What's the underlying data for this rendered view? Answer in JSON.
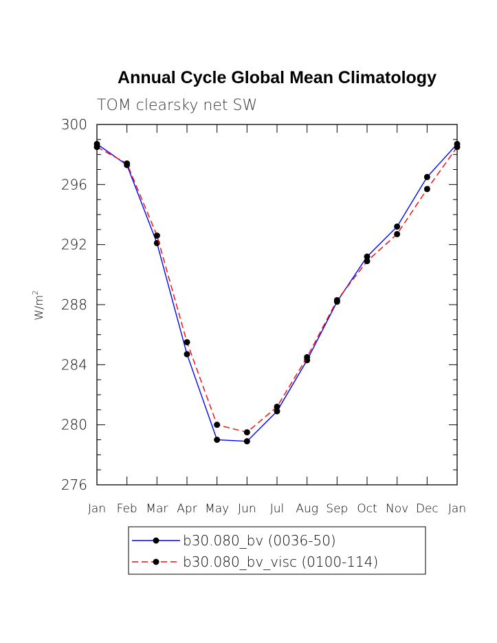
{
  "chart_data": {
    "type": "line",
    "title": "Annual Cycle Global Mean Climatology",
    "subtitle": "TOM clearsky net SW",
    "ylabel": "W/m",
    "ylabel_superscript": "2",
    "xlabel": "",
    "categories": [
      "Jan",
      "Feb",
      "Mar",
      "Apr",
      "May",
      "Jun",
      "Jul",
      "Aug",
      "Sep",
      "Oct",
      "Nov",
      "Dec",
      "Jan"
    ],
    "ylim": [
      276,
      300
    ],
    "yticks": [
      276,
      280,
      284,
      288,
      292,
      296,
      300
    ],
    "series": [
      {
        "name": "b30.080_bv (0036-50)",
        "color": "#0000ff",
        "dash": "solid",
        "values": [
          298.7,
          297.3,
          292.1,
          284.7,
          279.0,
          278.9,
          280.9,
          284.3,
          288.2,
          291.2,
          293.2,
          296.5,
          298.7
        ]
      },
      {
        "name": "b30.080_bv_visc (0100-114)",
        "color": "#ff0000",
        "dash": "dashed",
        "values": [
          298.5,
          297.4,
          292.6,
          285.5,
          280.0,
          279.5,
          281.2,
          284.5,
          288.3,
          290.9,
          292.7,
          295.7,
          298.5
        ]
      }
    ],
    "legend_position": "bottom-center"
  }
}
